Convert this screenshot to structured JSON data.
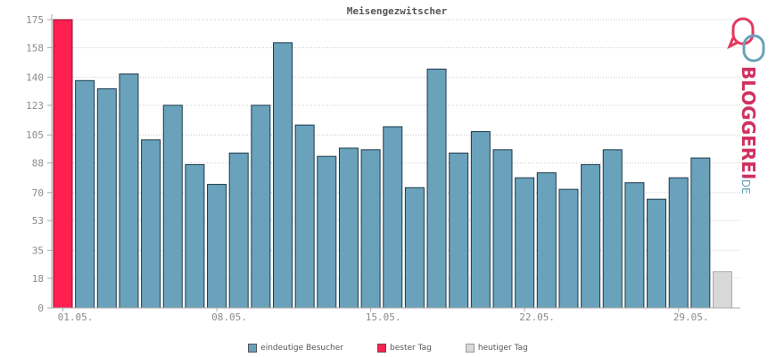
{
  "chart_data": {
    "type": "bar",
    "title": "Meisengezwitscher",
    "xlabel": "",
    "ylabel": "",
    "ylim": [
      0,
      175
    ],
    "yticks": [
      "0",
      "18",
      "35",
      "53",
      "70",
      "88",
      "105",
      "123",
      "140",
      "158",
      "175"
    ],
    "xtick_labels": [
      "01.05.",
      "08.05.",
      "15.05.",
      "22.05.",
      "29.05."
    ],
    "xtick_index": [
      1,
      8,
      15,
      22,
      29
    ],
    "grid": true,
    "legend_position": "bottom",
    "series": [
      {
        "name": "eindeutige Besucher",
        "color": "#6aa1bb",
        "values": [
          175,
          138,
          133,
          142,
          102,
          123,
          87,
          75,
          94,
          123,
          161,
          111,
          92,
          97,
          96,
          110,
          73,
          145,
          94,
          107,
          96,
          79,
          82,
          72,
          87,
          96,
          76,
          66,
          79,
          91,
          22
        ]
      }
    ],
    "best_index": 0,
    "today_index": 30,
    "colors": {
      "bar": "#6aa1bb",
      "best": "#ff2050",
      "today": "#d8d8d8",
      "outline": "#1a3a4a"
    }
  },
  "legend": [
    {
      "label": "eindeutige Besucher",
      "color": "#6aa1bb"
    },
    {
      "label": "bester Tag",
      "color": "#ff2050"
    },
    {
      "label": "heutiger Tag",
      "color": "#d8d8d8"
    }
  ],
  "logo": {
    "text": "BLOGGEREI",
    "suffix": ".DE",
    "icon": "speech-bubbles-icon"
  }
}
